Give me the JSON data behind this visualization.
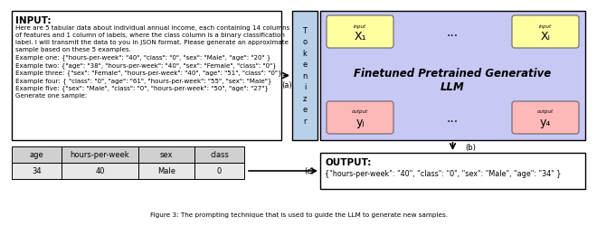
{
  "input_title": "INPUT:",
  "input_lines": [
    "Here are 5 tabular data about individual annual income, each containing 14 columns",
    "of features and 1 column of labels, where the class column is a binary classification",
    "label. I will transmit the data to you in JSON format. Please generate an approximate",
    "sample based on these 5 examples.",
    "Example one: {\"hours-per-week\": \"40\", \"class\": \"0\", \"sex\": \"Male\", \"age\": \"20\" }",
    "Example two: {\"age\": \"38\", \"hours-per-week\": \"40\", \"sex\": \"Female\", \"class\": \"0\"}",
    "Example three: {\"sex\": \"Female\", \"hours-per-week\": \"40\", \"age\": \"51\", \"class\": \"0\"}",
    "Example four: { \"class\": \"0\", \"age\": \"61\", \"hours-per-week\": \"55\", \"sex\": \"Male\"}",
    "Example five: {\"sex\": \"Male\", \"class\": \"0\", \"hours-per-week\": \"50\", \"age\": \"27\"}",
    "Generate one sample:"
  ],
  "output_title": "OUTPUT:",
  "output_text": "{\"hours-per-week\": \"40\", \"class\": \"0\", \"sex\": \"Male\", \"age\": \"34\" }",
  "table_headers": [
    "age",
    "hours-per-week",
    "sex",
    "class"
  ],
  "table_values": [
    "34",
    "40",
    "Male",
    "0"
  ],
  "tokenizer_text": "T\no\nk\ne\nn\ni\nz\ne\nr",
  "llm_title": "Finetuned Pretrained Generative\nLLM",
  "input_token_labels": [
    "input",
    "input"
  ],
  "input_token_subs": [
    "X₁",
    "Xₗ"
  ],
  "output_token_labels": [
    "output",
    "output"
  ],
  "output_token_subs": [
    "yⱼ",
    "y₄"
  ],
  "label_a": "(a)",
  "label_b": "(b)",
  "label_c": "(c)",
  "bg_white": "#ffffff",
  "bg_tokenizer": "#b8d0e8",
  "bg_llm_outer": "#c8c8f5",
  "bg_input_token": "#ffffa0",
  "bg_output_token": "#ffb8b8",
  "bg_table_header": "#d0d0d0",
  "bg_table_body": "#e8e8e8",
  "arrow_color": "#000000",
  "border_color": "#000000",
  "caption": "Figure 3: The prompting technique that is used to guide the LLM to generate new samples."
}
